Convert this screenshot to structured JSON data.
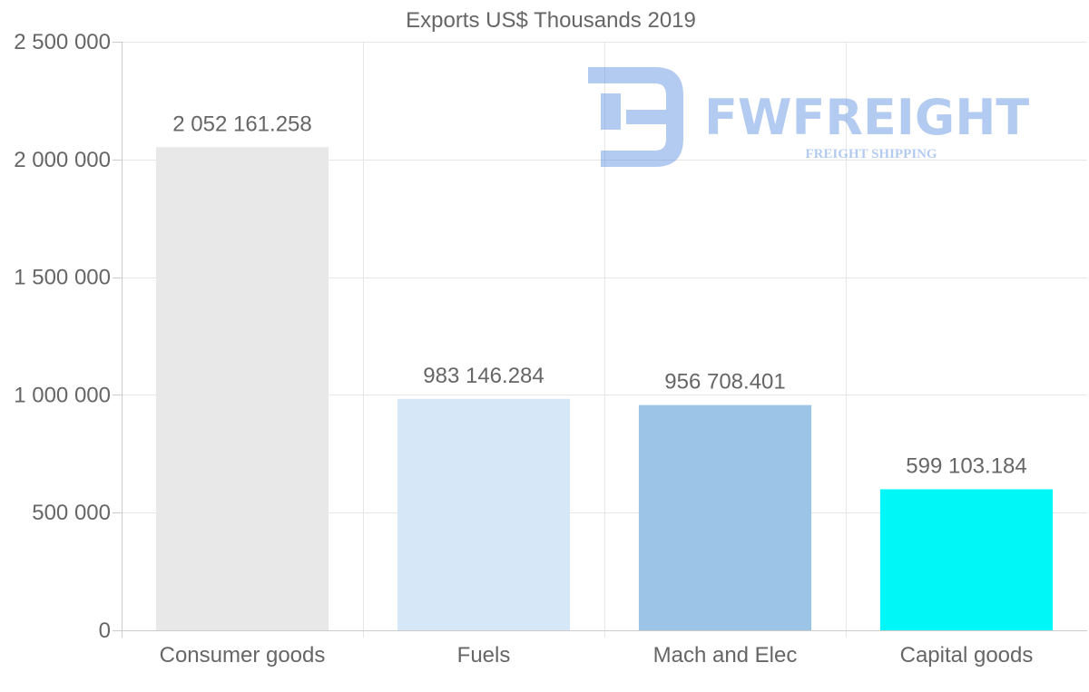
{
  "chart_data": {
    "type": "bar",
    "title": "Exports US$ Thousands 2019",
    "categories": [
      "Consumer goods",
      "Fuels",
      "Mach and Elec",
      "Capital goods"
    ],
    "values": [
      2052161.258,
      983146.284,
      956708.401,
      599103.184
    ],
    "value_labels": [
      "2 052 161.258",
      "983 146.284",
      "956 708.401",
      "599 103.184"
    ],
    "colors": [
      "#e8e8e8",
      "#d6e8f8",
      "#9bc4e6",
      "#00f7f7"
    ],
    "yticks": [
      0,
      500000,
      1000000,
      1500000,
      2000000,
      2500000
    ],
    "ytick_labels": [
      "0",
      "500 000",
      "1 000 000",
      "1 500 000",
      "2 000 000",
      "2 500 000"
    ],
    "ylim": [
      0,
      2500000
    ],
    "xlabel": "",
    "ylabel": "",
    "grid": true,
    "legend": "none"
  },
  "watermark": {
    "name": "FWFREIGHT",
    "tagline": "FREIGHT SHIPPING",
    "color": "#4f86e0"
  }
}
